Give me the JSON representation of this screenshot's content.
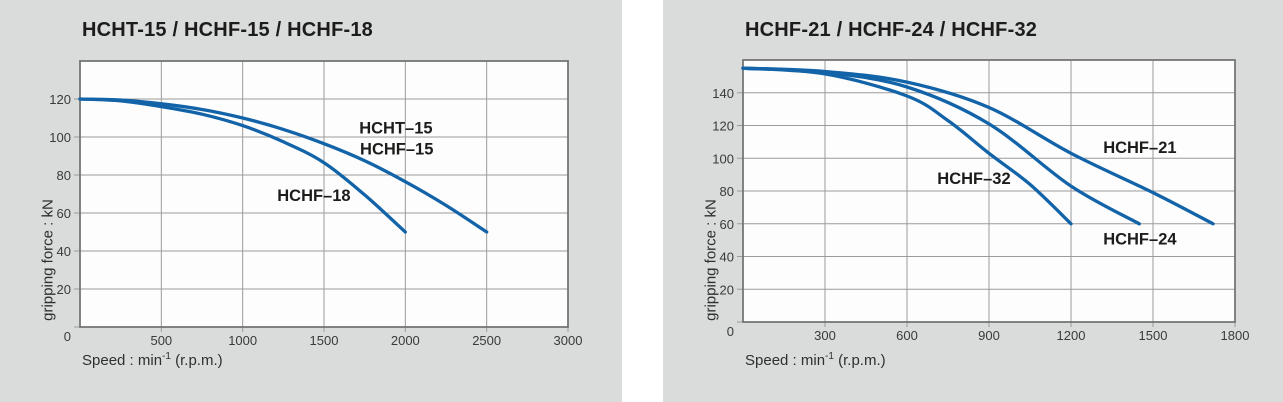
{
  "page": {
    "panel_bg": "#dadbdb",
    "plot_bg": "#fdfdfe",
    "curve_color": "#1263a8",
    "grid_color": "#9b9b9b",
    "frame_color": "#6f6f6f",
    "title_color": "#1c1c1a",
    "tick_text_color": "#3a3a3a"
  },
  "chart_data": [
    {
      "type": "line",
      "title": "HCHT-15 / HCHF-15 / HCHF-18",
      "ylabel": "gripping force : kN",
      "xlabel": "Speed : min⁻¹ (r.p.m.)",
      "xlabel_parts": {
        "prefix": "Speed : min",
        "sup": "-1",
        "suffix": " (r.p.m.)"
      },
      "xlim": [
        0,
        3000
      ],
      "ylim": [
        0,
        140
      ],
      "xticks": [
        500,
        1000,
        1500,
        2000,
        2500,
        3000
      ],
      "yticks": [
        0,
        20,
        40,
        60,
        80,
        100,
        120
      ],
      "grid": true,
      "legend_position": "inline-labels",
      "series": [
        {
          "name": "HCHT-15 / HCHF-15",
          "x": [
            0,
            250,
            500,
            750,
            1000,
            1250,
            1500,
            1750,
            2000,
            2250,
            2500
          ],
          "y": [
            120,
            119.5,
            117.5,
            114.5,
            110,
            104,
            96.5,
            87.5,
            76.5,
            64,
            50
          ]
        },
        {
          "name": "HCHF-18",
          "x": [
            0,
            250,
            500,
            750,
            1000,
            1250,
            1500,
            1750,
            2000
          ],
          "y": [
            120,
            119,
            116,
            112,
            106,
            97.5,
            86.5,
            69.5,
            50
          ]
        }
      ],
      "curve_labels": [
        {
          "text": "HCHT–15",
          "x": 1942,
          "y": 105
        },
        {
          "text": "HCHF–15",
          "x": 1947,
          "y": 94
        },
        {
          "text": "HCHF–18",
          "x": 1438,
          "y": 69.5
        }
      ]
    },
    {
      "type": "line",
      "title": "HCHF-21 / HCHF-24 / HCHF-32",
      "ylabel": "gripping force : kN",
      "xlabel": "Speed : min⁻¹ (r.p.m.)",
      "xlabel_parts": {
        "prefix": "Speed : min",
        "sup": "-1",
        "suffix": " (r.p.m.)"
      },
      "xlim": [
        0,
        1800
      ],
      "ylim": [
        0,
        160
      ],
      "xticks": [
        300,
        600,
        900,
        1200,
        1500,
        1800
      ],
      "yticks": [
        0,
        20,
        40,
        60,
        80,
        100,
        120,
        140
      ],
      "grid": true,
      "legend_position": "inline-labels",
      "series": [
        {
          "name": "HCHF-21",
          "x": [
            0,
            300,
            600,
            900,
            1200,
            1500,
            1720
          ],
          "y": [
            155,
            153,
            146.5,
            131,
            103,
            79,
            60
          ]
        },
        {
          "name": "HCHF-24",
          "x": [
            0,
            300,
            600,
            900,
            1200,
            1450
          ],
          "y": [
            155,
            152.5,
            143.5,
            121,
            83,
            60
          ]
        },
        {
          "name": "HCHF-32",
          "x": [
            0,
            300,
            600,
            750,
            900,
            1050,
            1200
          ],
          "y": [
            155,
            151.5,
            138,
            123,
            103,
            84,
            60
          ]
        }
      ],
      "curve_labels": [
        {
          "text": "HCHF–21",
          "x": 1452,
          "y": 107
        },
        {
          "text": "HCHF–24",
          "x": 1452,
          "y": 51
        },
        {
          "text": "HCHF–32",
          "x": 845,
          "y": 88
        }
      ]
    }
  ]
}
